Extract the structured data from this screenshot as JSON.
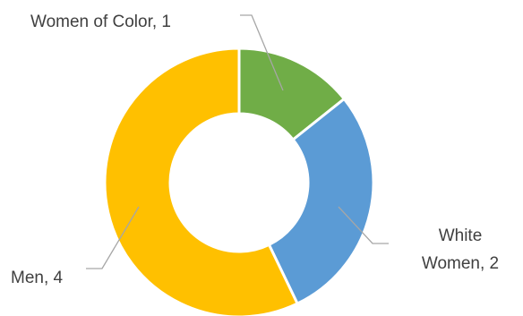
{
  "chart_data": {
    "type": "pie",
    "variant": "doughnut",
    "title": "",
    "categories": [
      "Women of Color",
      "White Women",
      "Men"
    ],
    "values": [
      1,
      2,
      4
    ],
    "colors": [
      "#70AD47",
      "#5B9BD5",
      "#FFC000"
    ],
    "start_angle_deg": 0,
    "direction": "clockwise",
    "legend": "none",
    "data_labels": [
      {
        "lines": [
          "Women of Color, 1"
        ]
      },
      {
        "lines": [
          "White",
          "Women, 2"
        ]
      },
      {
        "lines": [
          "Men, 4"
        ]
      }
    ],
    "leader_line_color": "#A6A6A6",
    "label_color": "#404040"
  }
}
